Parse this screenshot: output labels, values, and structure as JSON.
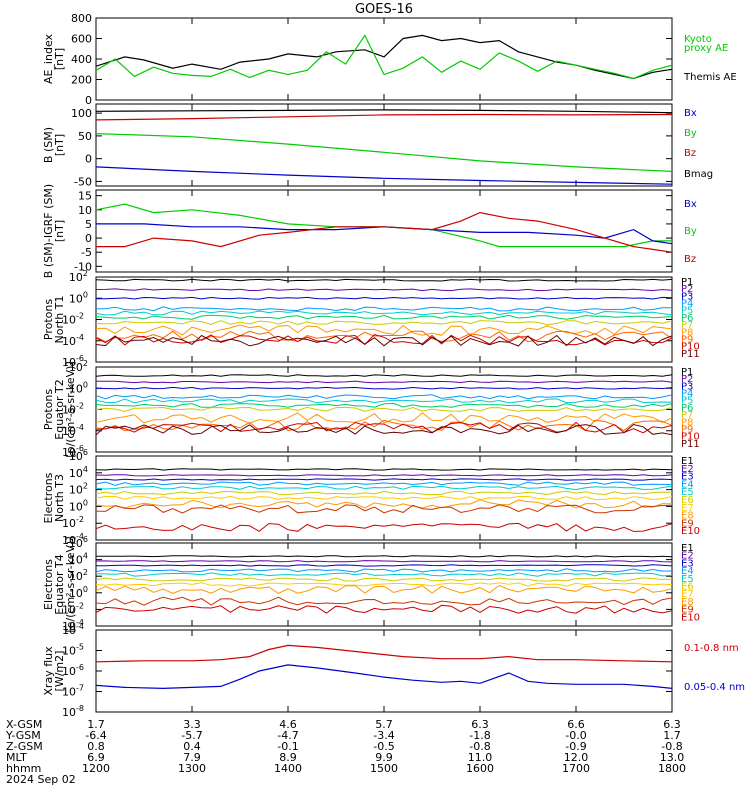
{
  "title": "GOES-16",
  "chart_data": [
    {
      "type": "line",
      "id": "ae",
      "ylabel": [
        "AE_index",
        "[nT]"
      ],
      "ylim": [
        0,
        800
      ],
      "yticks": [
        "0",
        "200",
        "400",
        "600",
        "800"
      ],
      "legend": [
        {
          "name": "Kyoto",
          "color": "#00cc00"
        },
        {
          "name": "proxy AE",
          "color": "#00cc00"
        },
        {
          "name": "Themis AE",
          "color": "#000000"
        }
      ],
      "series": [
        {
          "name": "Themis AE",
          "color": "#000000",
          "x": [
            12.0,
            12.3,
            12.5,
            12.8,
            13.0,
            13.3,
            13.5,
            13.8,
            14.0,
            14.3,
            14.5,
            14.8,
            15.0,
            15.2,
            15.4,
            15.6,
            15.8,
            16.0,
            16.2,
            16.4,
            16.6,
            16.8,
            17.0,
            17.2,
            17.4,
            17.6,
            17.8,
            18.0
          ],
          "y": [
            330,
            420,
            390,
            310,
            350,
            300,
            370,
            400,
            450,
            420,
            470,
            490,
            420,
            600,
            630,
            580,
            600,
            560,
            580,
            470,
            420,
            370,
            340,
            290,
            250,
            210,
            270,
            300
          ]
        },
        {
          "name": "Kyoto proxy AE",
          "color": "#00cc00",
          "x": [
            12.0,
            12.2,
            12.4,
            12.6,
            12.8,
            13.0,
            13.2,
            13.4,
            13.6,
            13.8,
            14.0,
            14.2,
            14.4,
            14.6,
            14.8,
            15.0,
            15.2,
            15.4,
            15.6,
            15.8,
            16.0,
            16.2,
            16.4,
            16.6,
            16.8,
            17.0,
            17.2,
            17.4,
            17.6,
            17.8,
            18.0
          ],
          "y": [
            290,
            400,
            230,
            320,
            260,
            240,
            230,
            300,
            220,
            290,
            250,
            290,
            470,
            350,
            630,
            250,
            310,
            420,
            270,
            380,
            300,
            460,
            380,
            280,
            380,
            340,
            300,
            260,
            210,
            290,
            340
          ]
        }
      ]
    },
    {
      "type": "line",
      "id": "bsm",
      "ylabel": [
        "B (SM)",
        "[nT]"
      ],
      "ylim": [
        -60,
        120
      ],
      "yticks": [
        "-50",
        "0",
        "50",
        "100"
      ],
      "yvals": [
        -50,
        0,
        50,
        100
      ],
      "legend": [
        {
          "name": "Bx",
          "color": "#0000cc"
        },
        {
          "name": "By",
          "color": "#00cc00"
        },
        {
          "name": "Bz",
          "color": "#cc0000"
        },
        {
          "name": "Bmag",
          "color": "#000000"
        }
      ],
      "series": [
        {
          "name": "Bmag",
          "color": "#000000",
          "x": [
            12,
            13,
            14,
            15,
            16,
            17,
            18
          ],
          "y": [
            104,
            105,
            106,
            107,
            106,
            104,
            101
          ]
        },
        {
          "name": "Bz",
          "color": "#cc0000",
          "x": [
            12,
            13,
            14,
            15,
            16,
            17,
            18
          ],
          "y": [
            85,
            88,
            92,
            96,
            97,
            96,
            97
          ]
        },
        {
          "name": "By",
          "color": "#00cc00",
          "x": [
            12,
            13,
            14,
            15,
            16,
            17,
            18
          ],
          "y": [
            55,
            48,
            32,
            14,
            -5,
            -18,
            -28
          ]
        },
        {
          "name": "Bx",
          "color": "#0000cc",
          "x": [
            12,
            13,
            14,
            15,
            16,
            17,
            18
          ],
          "y": [
            -18,
            -28,
            -36,
            -43,
            -48,
            -52,
            -56
          ]
        }
      ]
    },
    {
      "type": "line",
      "id": "bigrf",
      "ylabel": [
        "B (SM)-IGRF (SM)",
        "[nT]"
      ],
      "ylim": [
        -12,
        17
      ],
      "yticks": [
        "-10",
        "-5",
        "0",
        "5",
        "10",
        "15"
      ],
      "yvals": [
        -10,
        -5,
        0,
        5,
        10,
        15
      ],
      "legend": [
        {
          "name": "Bx",
          "color": "#0000cc"
        },
        {
          "name": "By",
          "color": "#00cc00"
        },
        {
          "name": "Bz",
          "color": "#cc0000"
        }
      ],
      "series": [
        {
          "name": "By",
          "color": "#00cc00",
          "x": [
            12.0,
            12.3,
            12.6,
            13.0,
            13.5,
            14.0,
            14.5,
            15.0,
            15.5,
            16.0,
            16.2,
            16.5,
            17.0,
            17.5,
            17.8,
            18.0
          ],
          "y": [
            10,
            12,
            9,
            10,
            8,
            5,
            4,
            4,
            3,
            -1,
            -3,
            -3,
            -3,
            -3,
            -1,
            -1
          ]
        },
        {
          "name": "Bx",
          "color": "#0000cc",
          "x": [
            12.0,
            12.5,
            13.0,
            13.5,
            14.0,
            14.5,
            15.0,
            15.5,
            16.0,
            16.5,
            17.0,
            17.3,
            17.6,
            17.8,
            18.0
          ],
          "y": [
            5,
            5,
            4,
            4,
            3,
            3,
            4,
            3,
            2,
            2,
            1,
            0,
            3,
            -1,
            -2
          ]
        },
        {
          "name": "Bz",
          "color": "#cc0000",
          "x": [
            12.0,
            12.3,
            12.6,
            13.0,
            13.3,
            13.7,
            14.0,
            14.5,
            15.0,
            15.5,
            15.8,
            16.0,
            16.3,
            16.6,
            17.0,
            17.3,
            17.6,
            17.8,
            18.0
          ],
          "y": [
            -3,
            -3,
            0,
            -1,
            -3,
            1,
            2,
            4,
            4,
            3,
            6,
            9,
            7,
            6,
            3,
            0,
            -3,
            -4,
            -5
          ]
        }
      ]
    },
    {
      "type": "line",
      "id": "protons_t1",
      "yscale": "log",
      "ylabel": [
        "Protons",
        "North T1"
      ],
      "ylim_exp": [
        -6,
        2
      ],
      "yticks_exp": [
        -6,
        -4,
        -2,
        0,
        2
      ],
      "legend": [
        {
          "name": "P1",
          "color": "#000000"
        },
        {
          "name": "P2",
          "color": "#6600aa"
        },
        {
          "name": "P3",
          "color": "#0000cc"
        },
        {
          "name": "P4",
          "color": "#0099ff"
        },
        {
          "name": "P5",
          "color": "#00cccc"
        },
        {
          "name": "P6",
          "color": "#00cc66"
        },
        {
          "name": "P7",
          "color": "#cccc00"
        },
        {
          "name": "P8",
          "color": "#ff9900"
        },
        {
          "name": "P9",
          "color": "#ff6600"
        },
        {
          "name": "P10",
          "color": "#cc0000"
        },
        {
          "name": "P11",
          "color": "#660000"
        }
      ],
      "levels": [
        1.7,
        0.8,
        0.0,
        -1.0,
        -1.4,
        -1.8,
        -2.3,
        -3.0,
        -3.6,
        -3.9,
        -4.0
      ]
    },
    {
      "type": "line",
      "id": "protons_t2",
      "yscale": "log",
      "ylabel": [
        "Protons",
        "Equator T2",
        "[p/(cm²-s-sr-keV)]"
      ],
      "ylim_exp": [
        -6,
        2
      ],
      "yticks_exp": [
        -6,
        -4,
        -2,
        0,
        2
      ],
      "legend": [
        {
          "name": "P1",
          "color": "#000000"
        },
        {
          "name": "P2",
          "color": "#6600aa"
        },
        {
          "name": "P3",
          "color": "#0000cc"
        },
        {
          "name": "P4",
          "color": "#0099ff"
        },
        {
          "name": "P5",
          "color": "#00cccc"
        },
        {
          "name": "P6",
          "color": "#00cc66"
        },
        {
          "name": "P7",
          "color": "#cccc00"
        },
        {
          "name": "P8",
          "color": "#ff9900"
        },
        {
          "name": "P9",
          "color": "#ff6600"
        },
        {
          "name": "P10",
          "color": "#cc0000"
        },
        {
          "name": "P11",
          "color": "#660000"
        }
      ],
      "levels": [
        1.2,
        0.6,
        0.0,
        -0.8,
        -1.2,
        -1.6,
        -2.0,
        -2.8,
        -3.5,
        -3.7,
        -3.9
      ]
    },
    {
      "type": "line",
      "id": "electrons_t3",
      "yscale": "log",
      "ylabel": [
        "Electrons",
        "North T3"
      ],
      "ylim_exp": [
        -4,
        6
      ],
      "yticks_exp": [
        -4,
        -2,
        0,
        2,
        4,
        6
      ],
      "legend": [
        {
          "name": "E1",
          "color": "#000000"
        },
        {
          "name": "E2",
          "color": "#6600aa"
        },
        {
          "name": "E3",
          "color": "#0000cc"
        },
        {
          "name": "E4",
          "color": "#0099ff"
        },
        {
          "name": "E5",
          "color": "#00cccc"
        },
        {
          "name": "E6",
          "color": "#cccc00"
        },
        {
          "name": "E7",
          "color": "#ffcc00"
        },
        {
          "name": "E8",
          "color": "#ff9900"
        },
        {
          "name": "E9",
          "color": "#cc3300"
        },
        {
          "name": "E10",
          "color": "#cc0000"
        }
      ],
      "levels": [
        4.4,
        3.7,
        3.2,
        2.7,
        2.2,
        1.6,
        1.0,
        0.3,
        -0.3,
        -2.5
      ]
    },
    {
      "type": "line",
      "id": "electrons_t4",
      "yscale": "log",
      "ylabel": [
        "Electrons",
        "Equator T4",
        "[e/(cm²-s-sr-keV)]"
      ],
      "ylim_exp": [
        -4,
        6
      ],
      "yticks_exp": [
        -4,
        -2,
        0,
        2,
        4,
        6
      ],
      "legend": [
        {
          "name": "E1",
          "color": "#000000"
        },
        {
          "name": "E2",
          "color": "#6600aa"
        },
        {
          "name": "E3",
          "color": "#0000cc"
        },
        {
          "name": "E4",
          "color": "#0099ff"
        },
        {
          "name": "E5",
          "color": "#00cccc"
        },
        {
          "name": "E6",
          "color": "#cccc00"
        },
        {
          "name": "E7",
          "color": "#ffcc00"
        },
        {
          "name": "E8",
          "color": "#ff9900"
        },
        {
          "name": "E9",
          "color": "#cc3300"
        },
        {
          "name": "E10",
          "color": "#cc0000"
        }
      ],
      "levels": [
        4.4,
        3.8,
        3.3,
        2.7,
        2.2,
        1.6,
        1.0,
        0.4,
        -1.0,
        -2.0
      ]
    },
    {
      "type": "line",
      "id": "xray",
      "yscale": "log",
      "ylabel": [
        "Xray flux",
        "[W/m2]"
      ],
      "ylim_exp": [
        -8,
        -4
      ],
      "yticks_exp": [
        -8,
        -7,
        -6,
        -5,
        -4
      ],
      "legend": [
        {
          "name": "0.1-0.8 nm",
          "color": "#cc0000"
        },
        {
          "name": "0.05-0.4 nm",
          "color": "#0000cc"
        }
      ],
      "series": [
        {
          "name": "0.1-0.8 nm",
          "color": "#cc0000",
          "x": [
            12.0,
            12.5,
            13.0,
            13.3,
            13.6,
            13.8,
            14.0,
            14.3,
            14.8,
            15.2,
            15.6,
            16.0,
            16.3,
            16.6,
            17.0,
            17.5,
            18.0
          ],
          "y": [
            -5.55,
            -5.5,
            -5.5,
            -5.45,
            -5.3,
            -4.95,
            -4.75,
            -4.85,
            -5.1,
            -5.3,
            -5.4,
            -5.4,
            -5.3,
            -5.45,
            -5.45,
            -5.5,
            -5.55
          ]
        },
        {
          "name": "0.05-0.4 nm",
          "color": "#0000cc",
          "x": [
            12.0,
            12.3,
            12.7,
            13.0,
            13.3,
            13.5,
            13.7,
            14.0,
            14.3,
            14.7,
            15.0,
            15.3,
            15.6,
            15.8,
            16.0,
            16.3,
            16.5,
            16.7,
            17.0,
            17.5,
            17.8,
            18.0
          ],
          "y": [
            -6.7,
            -6.8,
            -6.85,
            -6.8,
            -6.75,
            -6.4,
            -6.0,
            -5.7,
            -5.85,
            -6.1,
            -6.3,
            -6.45,
            -6.55,
            -6.5,
            -6.6,
            -6.1,
            -6.5,
            -6.6,
            -6.65,
            -6.65,
            -6.75,
            -6.85
          ]
        }
      ]
    }
  ],
  "x_axis": {
    "range": [
      12,
      18
    ],
    "rows": [
      {
        "label": "X-GSM",
        "values": [
          "1.7",
          "3.3",
          "4.6",
          "5.7",
          "6.3",
          "6.6",
          "6.3"
        ]
      },
      {
        "label": "Y-GSM",
        "values": [
          "-6.4",
          "-5.7",
          "-4.7",
          "-3.4",
          "-1.8",
          "-0.0",
          "1.7"
        ]
      },
      {
        "label": "Z-GSM",
        "values": [
          "0.8",
          "0.4",
          "-0.1",
          "-0.5",
          "-0.8",
          "-0.9",
          "-0.8"
        ]
      },
      {
        "label": "MLT",
        "values": [
          "6.9",
          "7.9",
          "8.9",
          "9.9",
          "11.0",
          "12.0",
          "13.0"
        ]
      },
      {
        "label": "hhmm",
        "values": [
          "1200",
          "1300",
          "1400",
          "1500",
          "1600",
          "1700",
          "1800"
        ]
      }
    ],
    "date": "2024 Sep 02"
  }
}
